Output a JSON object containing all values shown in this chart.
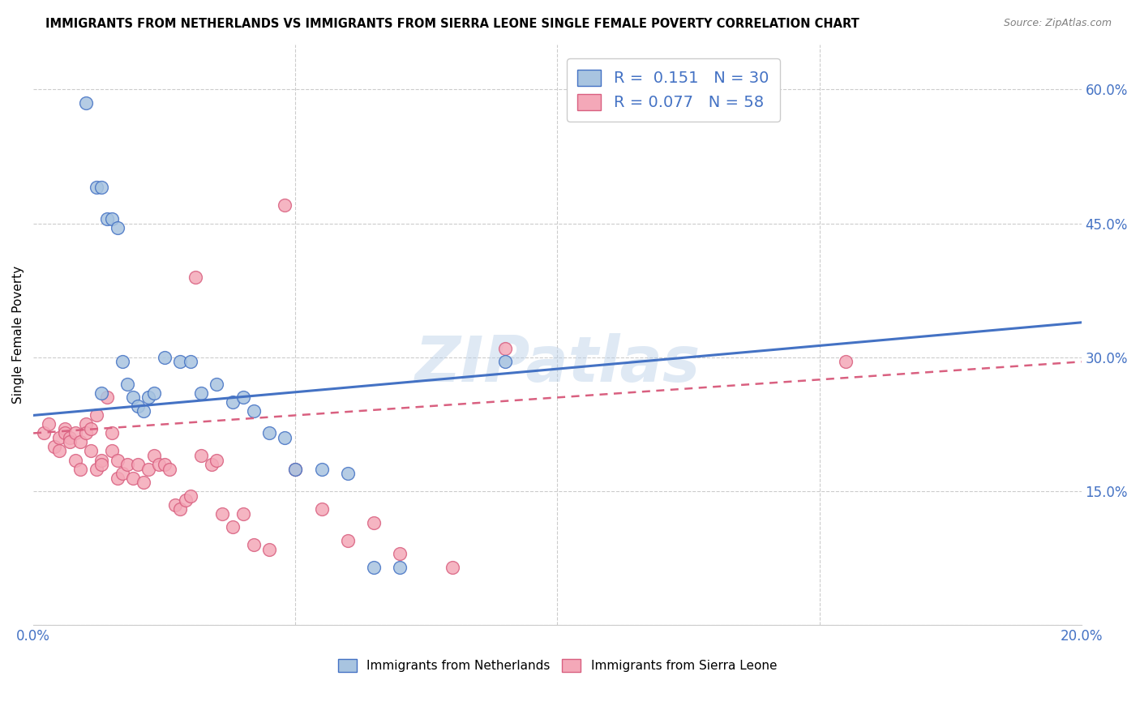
{
  "title": "IMMIGRANTS FROM NETHERLANDS VS IMMIGRANTS FROM SIERRA LEONE SINGLE FEMALE POVERTY CORRELATION CHART",
  "source": "Source: ZipAtlas.com",
  "ylabel": "Single Female Poverty",
  "xlim": [
    0.0,
    0.2
  ],
  "ylim": [
    0.0,
    0.65
  ],
  "x_ticks": [
    0.0,
    0.05,
    0.1,
    0.15,
    0.2
  ],
  "y_ticks_right": [
    0.0,
    0.15,
    0.3,
    0.45,
    0.6
  ],
  "y_tick_labels_right": [
    "",
    "15.0%",
    "30.0%",
    "45.0%",
    "60.0%"
  ],
  "watermark": "ZIPatlas",
  "color_netherlands": "#a8c4e0",
  "color_sierraleone": "#f4a8b8",
  "trendline_netherlands_color": "#4472c4",
  "trendline_sierraleone_color": "#d96080",
  "nl_intercept": 0.235,
  "nl_slope": 0.52,
  "sl_intercept": 0.215,
  "sl_slope": 0.4,
  "netherlands_points_x": [
    0.01,
    0.012,
    0.013,
    0.014,
    0.015,
    0.016,
    0.017,
    0.018,
    0.019,
    0.02,
    0.021,
    0.022,
    0.023,
    0.025,
    0.028,
    0.03,
    0.032,
    0.035,
    0.038,
    0.04,
    0.042,
    0.045,
    0.048,
    0.05,
    0.055,
    0.06,
    0.065,
    0.07,
    0.09,
    0.013
  ],
  "netherlands_points_y": [
    0.585,
    0.49,
    0.49,
    0.455,
    0.455,
    0.445,
    0.295,
    0.27,
    0.255,
    0.245,
    0.24,
    0.255,
    0.26,
    0.3,
    0.295,
    0.295,
    0.26,
    0.27,
    0.25,
    0.255,
    0.24,
    0.215,
    0.21,
    0.175,
    0.175,
    0.17,
    0.065,
    0.065,
    0.295,
    0.26
  ],
  "sierraleone_points_x": [
    0.002,
    0.003,
    0.004,
    0.005,
    0.005,
    0.006,
    0.006,
    0.007,
    0.007,
    0.008,
    0.008,
    0.009,
    0.009,
    0.01,
    0.01,
    0.011,
    0.011,
    0.012,
    0.012,
    0.013,
    0.013,
    0.014,
    0.015,
    0.015,
    0.016,
    0.016,
    0.017,
    0.018,
    0.019,
    0.02,
    0.021,
    0.022,
    0.023,
    0.024,
    0.025,
    0.026,
    0.027,
    0.028,
    0.029,
    0.03,
    0.031,
    0.032,
    0.034,
    0.035,
    0.036,
    0.038,
    0.04,
    0.042,
    0.045,
    0.048,
    0.05,
    0.055,
    0.06,
    0.065,
    0.07,
    0.08,
    0.09,
    0.155
  ],
  "sierraleone_points_y": [
    0.215,
    0.225,
    0.2,
    0.21,
    0.195,
    0.22,
    0.215,
    0.21,
    0.205,
    0.215,
    0.185,
    0.205,
    0.175,
    0.225,
    0.215,
    0.22,
    0.195,
    0.235,
    0.175,
    0.185,
    0.18,
    0.255,
    0.215,
    0.195,
    0.185,
    0.165,
    0.17,
    0.18,
    0.165,
    0.18,
    0.16,
    0.175,
    0.19,
    0.18,
    0.18,
    0.175,
    0.135,
    0.13,
    0.14,
    0.145,
    0.39,
    0.19,
    0.18,
    0.185,
    0.125,
    0.11,
    0.125,
    0.09,
    0.085,
    0.47,
    0.175,
    0.13,
    0.095,
    0.115,
    0.08,
    0.065,
    0.31,
    0.295
  ]
}
